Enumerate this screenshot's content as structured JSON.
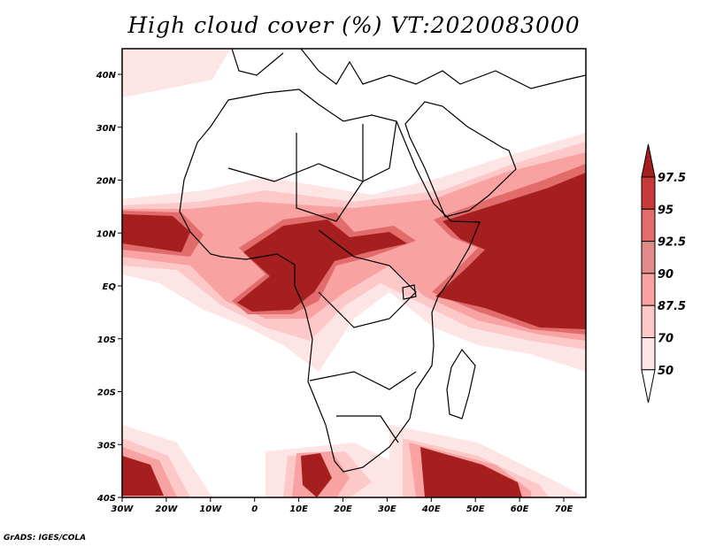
{
  "title": "High cloud cover (%) VT:2020083000",
  "credit": "GrADS: IGES/COLA",
  "map": {
    "x_labels": [
      "30W",
      "20W",
      "10W",
      "0",
      "10E",
      "20E",
      "30E",
      "40E",
      "50E",
      "60E",
      "70E"
    ],
    "y_labels": [
      "40N",
      "30N",
      "20N",
      "10N",
      "EQ",
      "10S",
      "20S",
      "30S",
      "40S"
    ]
  },
  "colorbar": {
    "levels": [
      "97.5",
      "95",
      "92.5",
      "90",
      "87.5",
      "70",
      "50"
    ],
    "colors": [
      "#a51f1f",
      "#c83a3a",
      "#e26c6c",
      "#e18b8b",
      "#f8a2a2",
      "#fcc8c8",
      "#fde5e5",
      "#ffffff"
    ]
  }
}
